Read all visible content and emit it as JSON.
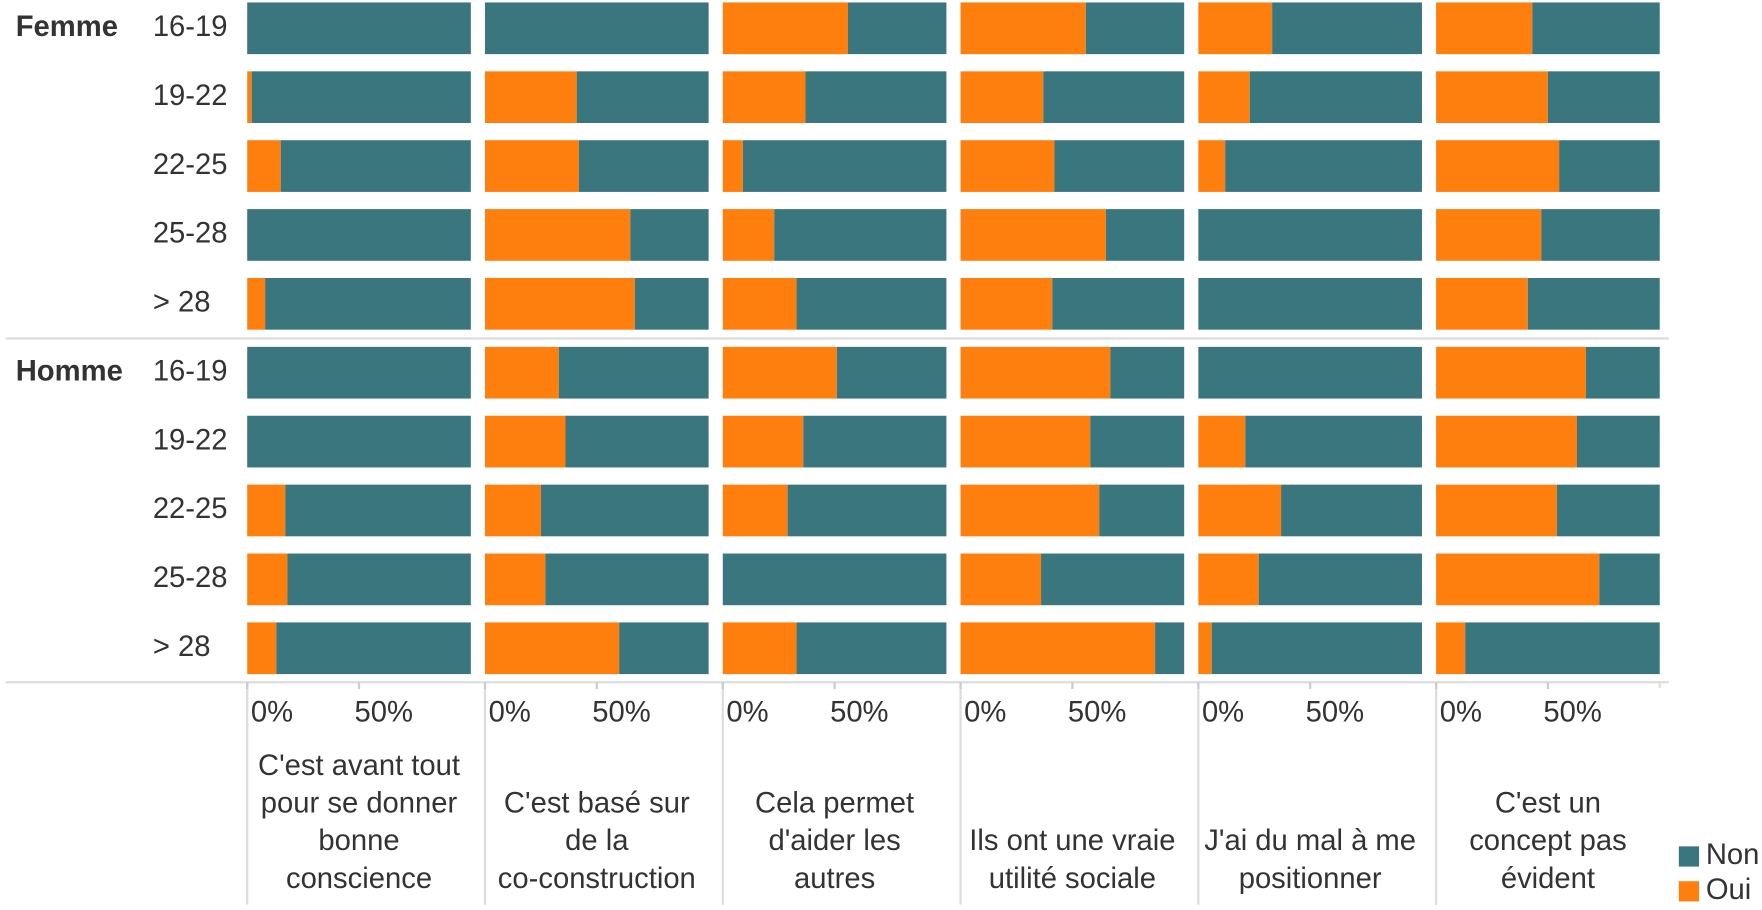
{
  "chart_data": {
    "type": "bar",
    "orientation": "horizontal",
    "stacked": true,
    "groups": [
      "Femme",
      "Homme"
    ],
    "categories": [
      "16-19",
      "19-22",
      "22-25",
      "25-28",
      "> 28",
      "16-19",
      "19-22",
      "22-25",
      "25-28",
      "> 28"
    ],
    "panels": [
      {
        "title": [
          "C'est avant tout",
          "pour se donner",
          "bonne",
          "conscience"
        ]
      },
      {
        "title": [
          "C'est basé sur",
          "de la",
          "co-construction"
        ]
      },
      {
        "title": [
          "Cela permet",
          "d'aider les",
          "autres"
        ]
      },
      {
        "title": [
          "Ils ont une vraie",
          "utilité sociale"
        ]
      },
      {
        "title": [
          "J'ai du mal à me",
          "positionner"
        ]
      },
      {
        "title": [
          "C'est un",
          "concept pas",
          "évident"
        ]
      }
    ],
    "series": [
      {
        "name": "Oui",
        "color": "#ff7f0e",
        "values": [
          [
            0,
            2,
            15,
            0,
            8,
            0,
            0,
            17,
            18,
            13
          ],
          [
            0,
            41,
            42,
            65,
            67,
            33,
            36,
            25,
            27,
            60
          ],
          [
            56,
            37,
            9,
            23,
            33,
            51,
            36,
            29,
            0,
            33
          ],
          [
            56,
            37,
            42,
            65,
            41,
            67,
            58,
            62,
            36,
            87
          ],
          [
            33,
            23,
            12,
            0,
            0,
            0,
            21,
            37,
            27,
            6
          ],
          [
            43,
            50,
            55,
            47,
            41,
            67,
            63,
            54,
            73,
            13
          ]
        ]
      },
      {
        "name": "Non",
        "color": "#3a767e",
        "values": [
          [
            100,
            98,
            85,
            100,
            92,
            100,
            100,
            83,
            82,
            87
          ],
          [
            100,
            59,
            58,
            35,
            33,
            67,
            64,
            75,
            73,
            40
          ],
          [
            44,
            63,
            91,
            77,
            67,
            49,
            64,
            71,
            100,
            67
          ],
          [
            44,
            63,
            58,
            35,
            59,
            33,
            42,
            38,
            64,
            13
          ],
          [
            67,
            77,
            88,
            100,
            100,
            100,
            79,
            63,
            73,
            94
          ],
          [
            57,
            50,
            45,
            53,
            59,
            33,
            37,
            46,
            27,
            87
          ]
        ]
      }
    ],
    "xlim": [
      0,
      100
    ],
    "xticks": [
      {
        "value": 0,
        "label": "0%"
      },
      {
        "value": 50,
        "label": "50%"
      }
    ]
  }
}
